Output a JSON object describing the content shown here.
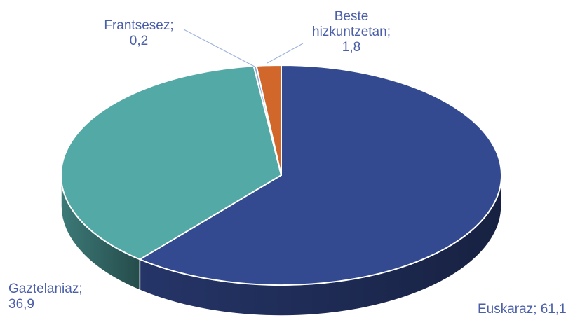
{
  "chart_data": {
    "type": "pie",
    "style": "3d",
    "slices": [
      {
        "name": "Euskaraz",
        "value": 61.1,
        "label": [
          "Euskaraz;  61,1"
        ],
        "color": "#334a91"
      },
      {
        "name": "Gaztelaniaz",
        "value": 36.9,
        "label": [
          "Gaztelaniaz;",
          "36,9"
        ],
        "color": "#53a9a6"
      },
      {
        "name": "Frantsesez",
        "value": 0.2,
        "label": [
          "Frantsesez;",
          "0,2"
        ],
        "color": "#8aa5d8"
      },
      {
        "name": "Beste hizkuntzetan",
        "value": 1.8,
        "label": [
          "Beste",
          "hizkuntzetan;",
          "1,8"
        ],
        "color": "#d2672b"
      }
    ],
    "label_color": "#4a5fa8",
    "leader_line_color": "#9eb3df"
  }
}
